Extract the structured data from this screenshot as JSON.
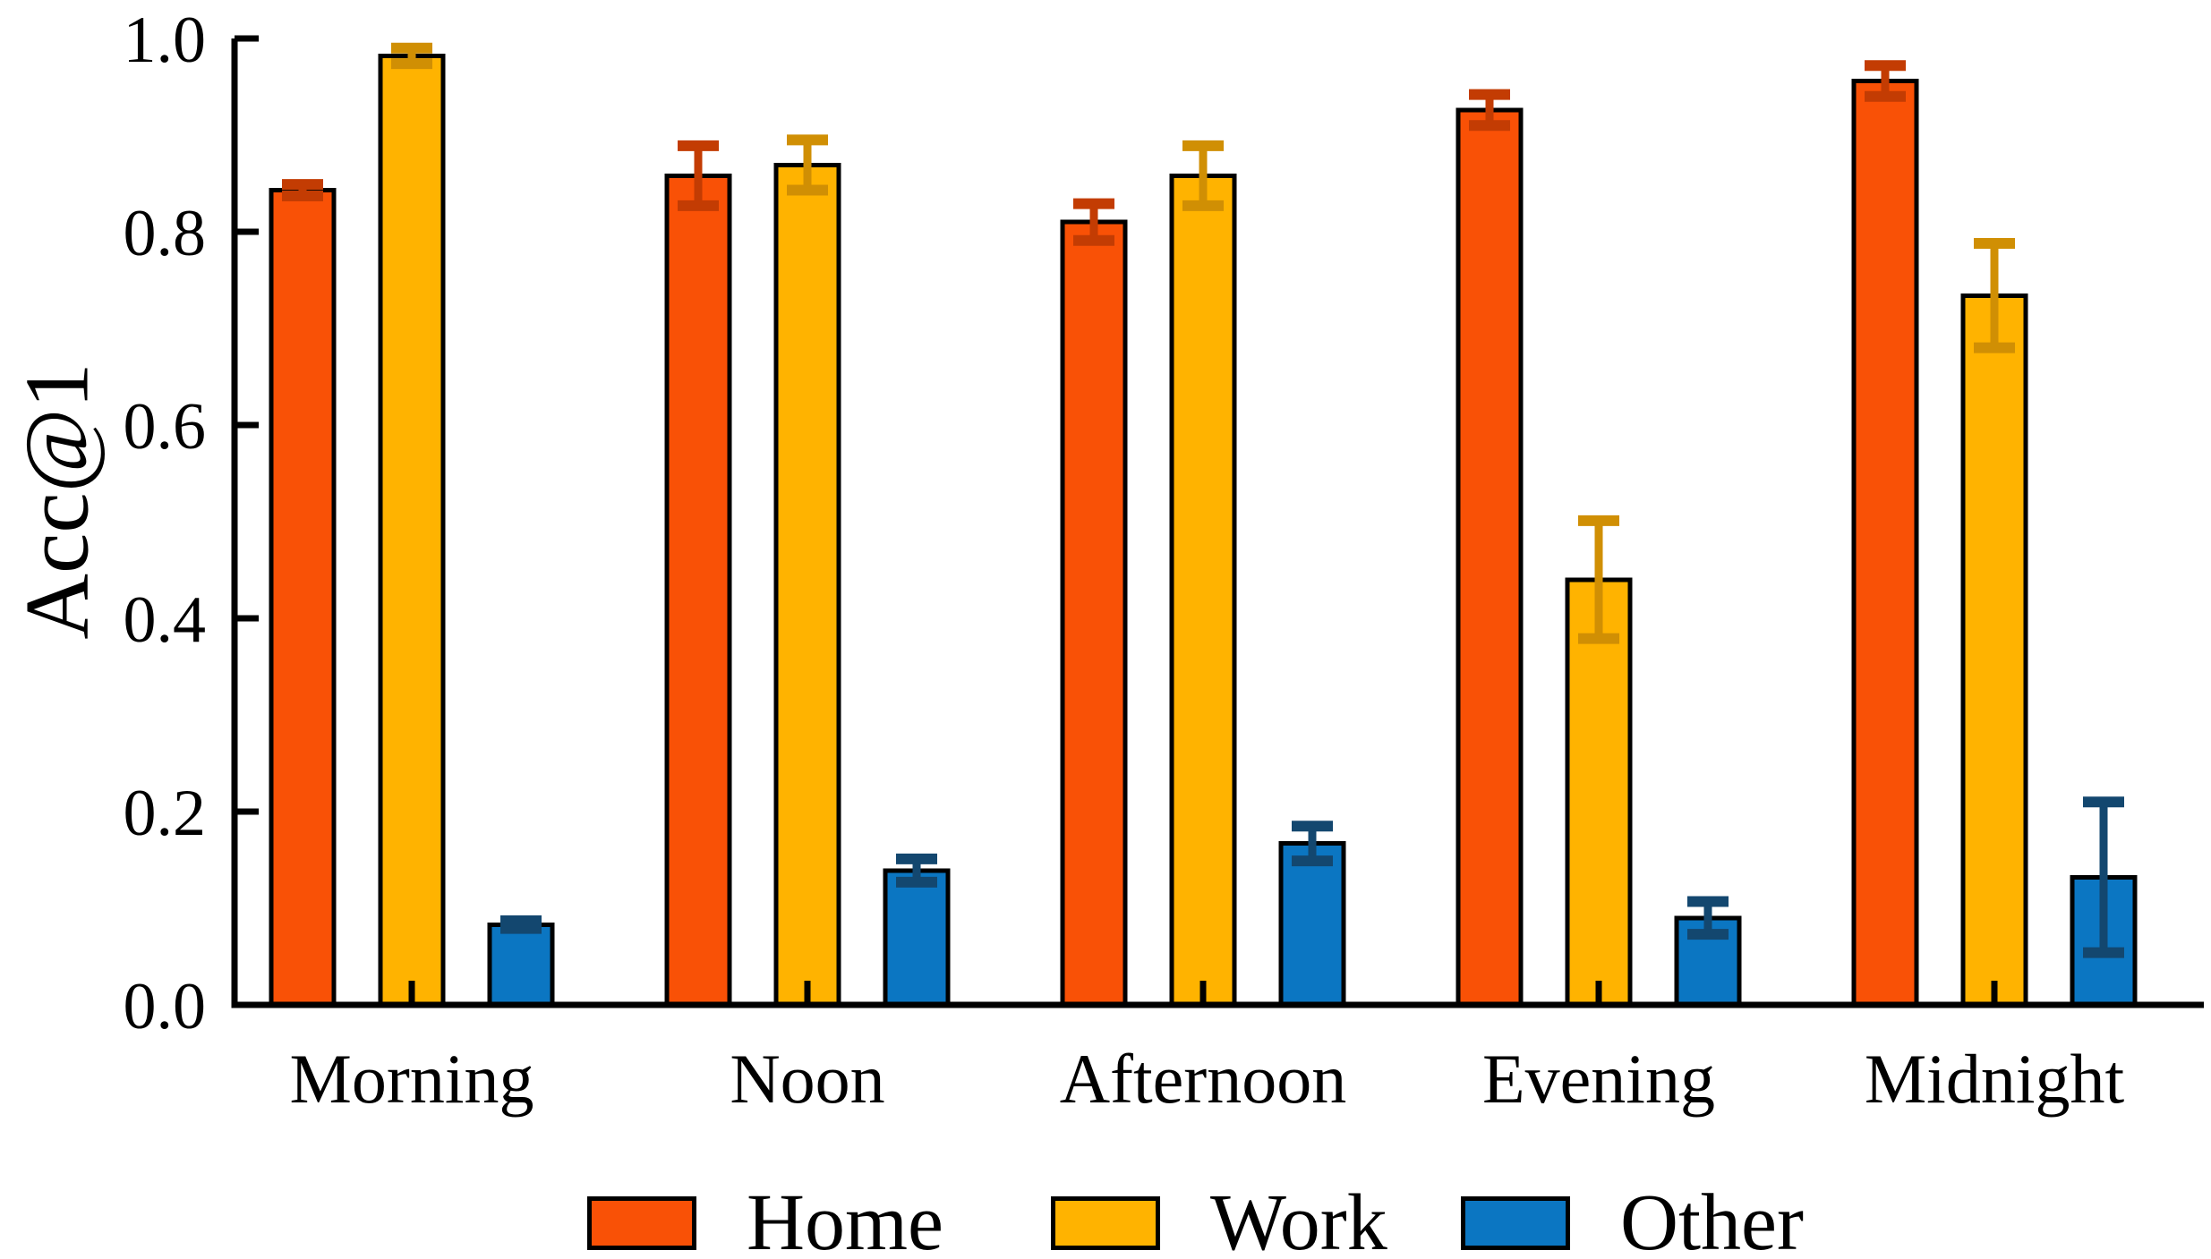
{
  "figure": {
    "background": "#ffffff",
    "y_axis_title": "Acc@1"
  },
  "chart_data": {
    "type": "bar",
    "title": "",
    "xlabel": "",
    "ylabel": "Acc@1",
    "categories": [
      "Morning",
      "Noon",
      "Afternoon",
      "Evening",
      "Midnight"
    ],
    "series": [
      {
        "name": "Home",
        "color": "#F95106",
        "error_color": "#C33C03",
        "values": [
          0.843,
          0.858,
          0.81,
          0.926,
          0.956
        ],
        "errors": [
          0.006,
          0.031,
          0.019,
          0.016,
          0.016
        ]
      },
      {
        "name": "Work",
        "color": "#FFB300",
        "error_color": "#D08F04",
        "values": [
          0.982,
          0.869,
          0.858,
          0.44,
          0.734
        ],
        "errors": [
          0.008,
          0.026,
          0.031,
          0.061,
          0.054
        ]
      },
      {
        "name": "Other",
        "color": "#0B76C2",
        "error_color": "#13476F",
        "values": [
          0.083,
          0.139,
          0.167,
          0.09,
          0.132
        ],
        "errors": [
          0.004,
          0.012,
          0.018,
          0.017,
          0.078
        ]
      }
    ],
    "ylim": [
      0.0,
      1.0
    ],
    "yticks": [
      "0.0",
      "0.2",
      "0.4",
      "0.6",
      "0.8",
      "1.0"
    ],
    "grid": false,
    "error_bars": true,
    "tick_direction": "in",
    "legend_position": "bottom",
    "axis_color": "#000000"
  }
}
